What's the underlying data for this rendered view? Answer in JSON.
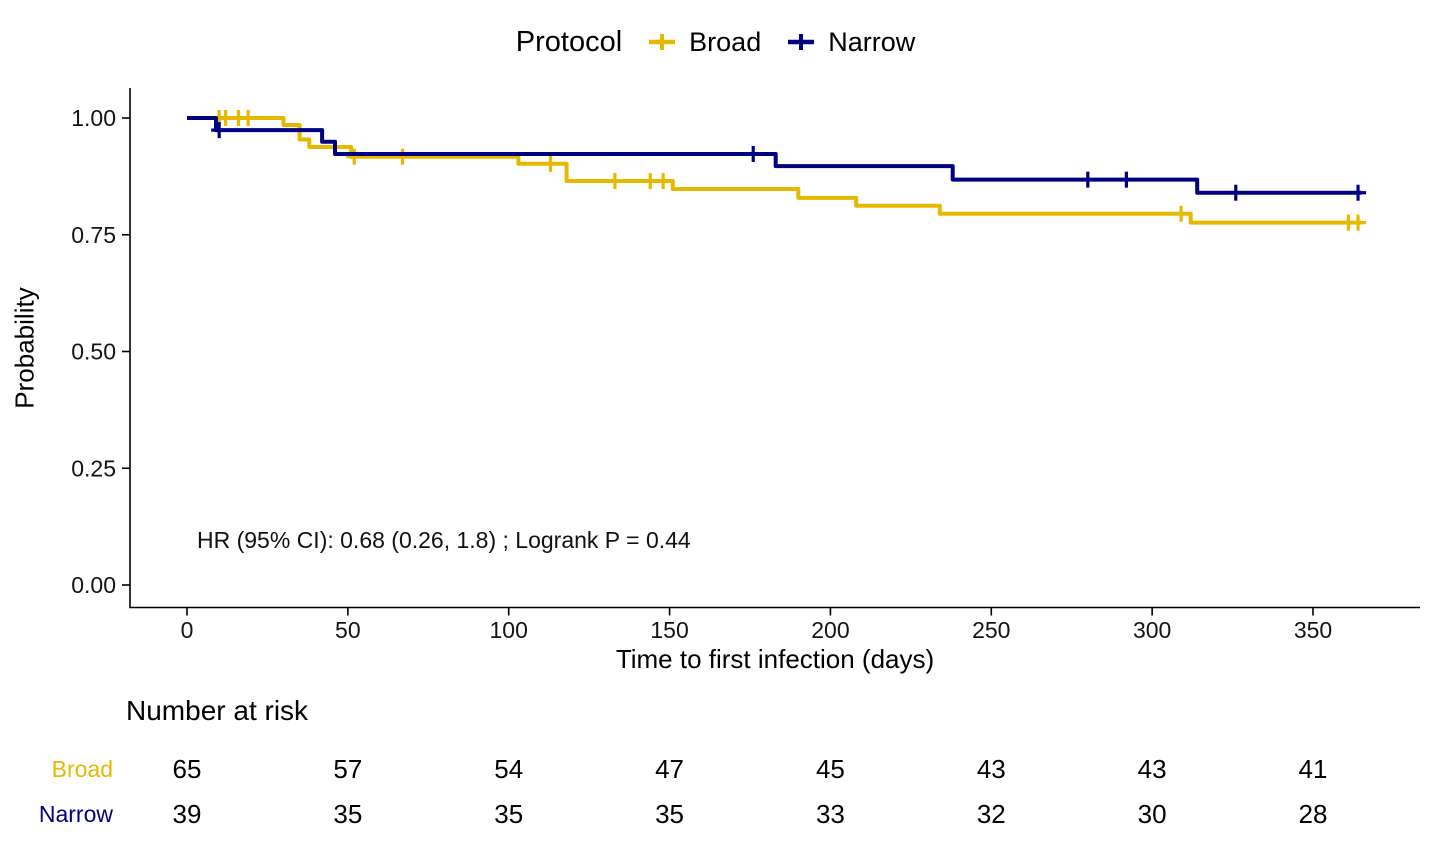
{
  "chart_data": {
    "type": "line",
    "subtype": "kaplan-meier-step",
    "legend_title": "Protocol",
    "legend_position": "top",
    "xlabel": "Time to first infection (days)",
    "ylabel": "Probability",
    "xlim": [
      0,
      381
    ],
    "ylim": [
      0,
      1.05
    ],
    "x_ticks": [
      0,
      50,
      100,
      150,
      200,
      250,
      300,
      350
    ],
    "y_ticks": [
      0,
      0.25,
      0.5,
      0.75,
      1.0
    ],
    "grid": false,
    "annotation": "HR (95% CI): 0.68 (0.26, 1.8) ; Logrank P = 0.44",
    "series": [
      {
        "name": "Broad",
        "color": "#E7B800",
        "end_day": 365,
        "steps": [
          [
            0,
            1.0
          ],
          [
            30,
            0.985
          ],
          [
            35,
            0.954
          ],
          [
            38,
            0.938
          ],
          [
            51,
            0.917
          ],
          [
            103,
            0.902
          ],
          [
            118,
            0.865
          ],
          [
            151,
            0.848
          ],
          [
            190,
            0.829
          ],
          [
            208,
            0.812
          ],
          [
            234,
            0.795
          ],
          [
            312,
            0.776
          ]
        ],
        "censors": [
          [
            10,
            1.0
          ],
          [
            12,
            1.0
          ],
          [
            16,
            1.0
          ],
          [
            19,
            1.0
          ],
          [
            52,
            0.917
          ],
          [
            67,
            0.917
          ],
          [
            113,
            0.902
          ],
          [
            133,
            0.865
          ],
          [
            144,
            0.865
          ],
          [
            148,
            0.865
          ],
          [
            309,
            0.795
          ],
          [
            361,
            0.776
          ],
          [
            364,
            0.776
          ]
        ]
      },
      {
        "name": "Narrow",
        "color": "#000080",
        "end_day": 365,
        "steps": [
          [
            0,
            1.0
          ],
          [
            9,
            0.974
          ],
          [
            42,
            0.949
          ],
          [
            46,
            0.923
          ],
          [
            183,
            0.897
          ],
          [
            238,
            0.868
          ],
          [
            314,
            0.84
          ]
        ],
        "censors": [
          [
            10,
            0.974
          ],
          [
            176,
            0.923
          ],
          [
            280,
            0.868
          ],
          [
            292,
            0.868
          ],
          [
            326,
            0.84
          ],
          [
            364,
            0.84
          ]
        ]
      }
    ]
  },
  "risk_table": {
    "title": "Number at risk",
    "time_points": [
      0,
      50,
      100,
      150,
      200,
      250,
      300,
      350
    ],
    "rows": [
      {
        "label": "Broad",
        "color": "#E7B800",
        "counts": [
          65,
          57,
          54,
          47,
          45,
          43,
          43,
          41
        ]
      },
      {
        "label": "Narrow",
        "color": "#000080",
        "counts": [
          39,
          35,
          35,
          35,
          33,
          32,
          30,
          28
        ]
      }
    ]
  }
}
